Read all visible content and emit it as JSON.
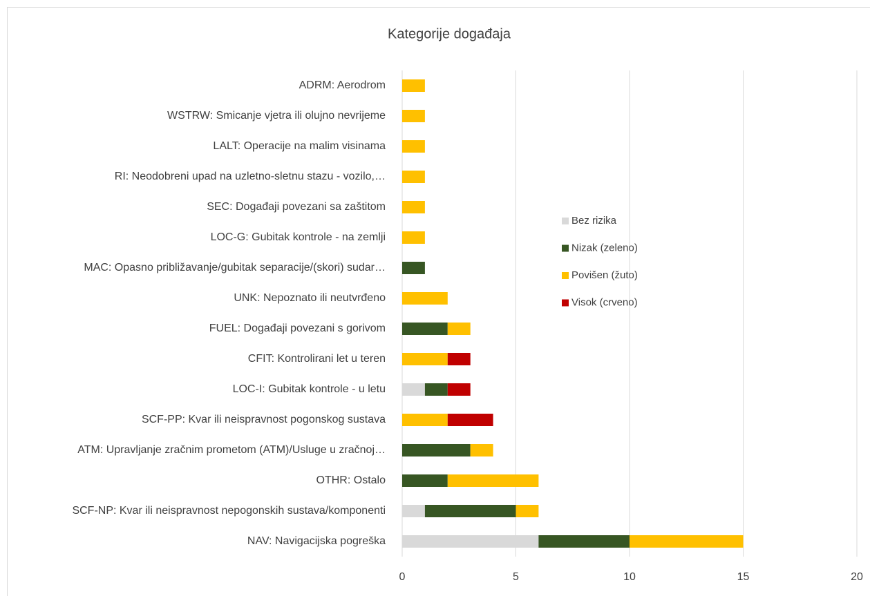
{
  "chart_data": {
    "type": "stacked_barh",
    "title": "Kategorije događaja",
    "categories": [
      "ADRM: Aerodrom",
      "WSTRW: Smicanje vjetra ili olujno nevrijeme",
      "LALT: Operacije na malim visinama",
      "RI: Neodobreni upad na uzletno-sletnu stazu - vozilo,…",
      "SEC: Događaji povezani sa zaštitom",
      "LOC-G: Gubitak kontrole - na zemlji",
      "MAC: Opasno približavanje/gubitak separacije/(skori) sudar…",
      "UNK: Nepoznato ili neutvrđeno",
      "FUEL: Događaji povezani s gorivom",
      "CFIT: Kontrolirani let u teren",
      "LOC-I: Gubitak kontrole - u letu",
      "SCF-PP: Kvar ili neispravnost pogonskog sustava",
      "ATM: Upravljanje zračnim prometom (ATM)/Usluge u zračnoj…",
      "OTHR: Ostalo",
      "SCF-NP: Kvar ili neispravnost nepogonskih sustava/komponenti",
      "NAV: Navigacijska pogreška"
    ],
    "series": [
      {
        "name": "Bez rizika",
        "color": "#d9d9d9",
        "values": [
          0,
          0,
          0,
          0,
          0,
          0,
          0,
          0,
          0,
          0,
          1,
          0,
          0,
          0,
          1,
          6
        ]
      },
      {
        "name": "Nizak (zeleno)",
        "color": "#375623",
        "values": [
          0,
          0,
          0,
          0,
          0,
          0,
          1,
          0,
          2,
          0,
          1,
          0,
          3,
          2,
          4,
          4
        ]
      },
      {
        "name": "Povišen (žuto)",
        "color": "#ffc000",
        "values": [
          1,
          1,
          1,
          1,
          1,
          1,
          0,
          2,
          1,
          2,
          0,
          2,
          1,
          4,
          1,
          5
        ]
      },
      {
        "name": "Visok (crveno)",
        "color": "#c00000",
        "values": [
          0,
          0,
          0,
          0,
          0,
          0,
          0,
          0,
          0,
          1,
          1,
          2,
          0,
          0,
          0,
          0
        ]
      }
    ],
    "xlim": [
      0,
      20
    ],
    "xticks": [
      0,
      5,
      10,
      15,
      20
    ],
    "grid": true
  }
}
